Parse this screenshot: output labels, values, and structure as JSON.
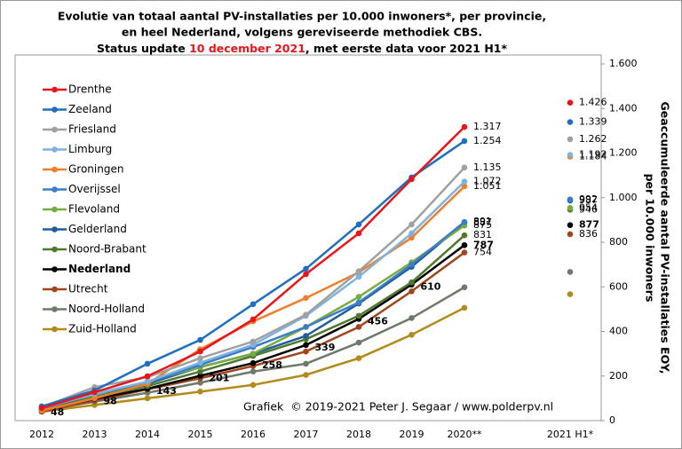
{
  "chart_data": {
    "type": "line",
    "title": [
      "Evolutie van totaal aantal PV-installaties  per 10.000 inwoners*, per provincie,",
      "en heel Nederland, volgens gereviseerde methodiek CBS."
    ],
    "status": {
      "prefix": "Status update ",
      "date": "10 december 2021",
      "suffix": ", met eerste data voor 2021 H1*"
    },
    "credit": "Grafiek  © 2019-2021 Peter J. Segaar / www.polderpv.nl",
    "y_label": [
      "Geaccumuleerde aantal PV-installaties EOY,",
      "per 10.000 inwoners"
    ],
    "categories": [
      "2012",
      "2013",
      "2014",
      "2015",
      "2016",
      "2017",
      "2018",
      "2019",
      "2020**",
      null,
      "2021 H1*"
    ],
    "ylim": [
      0,
      1600
    ],
    "yticks": [
      0,
      200,
      400,
      600,
      800,
      {
        "value": 1000,
        "label": "1.000"
      },
      {
        "value": 1200,
        "label": "1.200"
      },
      {
        "value": 1400,
        "label": "1.400"
      },
      {
        "value": 1600,
        "label": "1.600"
      }
    ],
    "legend": "upper left",
    "series": [
      {
        "name": "Drenthe",
        "color": "#e8161b",
        "values": [
          56,
          127,
          199,
          310,
          454,
          657,
          840,
          1083,
          1317,
          null,
          1426
        ],
        "value_labels": [
          null,
          null,
          null,
          null,
          null,
          null,
          null,
          null,
          "1.317",
          null,
          "1.426"
        ]
      },
      {
        "name": "Zeeland",
        "color": "#1f6fc1",
        "values": [
          64,
          135,
          255,
          362,
          522,
          681,
          880,
          1091,
          1254,
          null,
          1339
        ],
        "value_labels": [
          null,
          null,
          null,
          null,
          null,
          null,
          null,
          null,
          "1.254",
          null,
          "1.339"
        ]
      },
      {
        "name": "Friesland",
        "color": "#a0a0a0",
        "values": [
          60,
          150,
          195,
          280,
          355,
          475,
          670,
          880,
          1135,
          null,
          1262
        ],
        "value_labels": [
          null,
          null,
          null,
          null,
          null,
          null,
          null,
          null,
          "1.135",
          null,
          "1.262"
        ]
      },
      {
        "name": "Limburg",
        "color": "#7cb3e0",
        "values": [
          55,
          120,
          175,
          260,
          340,
          470,
          645,
          840,
          1072,
          null,
          1192
        ],
        "value_labels": [
          null,
          null,
          null,
          null,
          null,
          null,
          null,
          null,
          "1.072",
          null,
          "1.192"
        ]
      },
      {
        "name": "Groningen",
        "color": "#ef7f2c",
        "values": [
          45,
          100,
          165,
          320,
          445,
          550,
          665,
          820,
          1051,
          null,
          1184
        ],
        "value_labels": [
          null,
          null,
          null,
          null,
          null,
          null,
          null,
          null,
          "1.051",
          null,
          "1.184"
        ]
      },
      {
        "name": "Overijssel",
        "color": "#3b7dc8",
        "values": [
          55,
          120,
          170,
          250,
          330,
          420,
          530,
          700,
          891,
          null,
          992
        ],
        "value_labels": [
          null,
          null,
          null,
          null,
          null,
          null,
          null,
          null,
          "891",
          null,
          "992"
        ]
      },
      {
        "name": "Flevoland",
        "color": "#77ac41",
        "values": [
          60,
          115,
          175,
          240,
          300,
          420,
          555,
          710,
          875,
          null,
          954
        ],
        "value_labels": [
          null,
          null,
          null,
          null,
          null,
          null,
          null,
          null,
          "875",
          null,
          "954"
        ]
      },
      {
        "name": "Gelderland",
        "color": "#1e5c9c",
        "values": [
          55,
          115,
          165,
          240,
          300,
          380,
          525,
          690,
          887,
          null,
          987
        ],
        "value_labels": [
          null,
          null,
          null,
          null,
          null,
          null,
          null,
          null,
          "887",
          null,
          "987"
        ]
      },
      {
        "name": "Noord-Brabant",
        "color": "#4e7a2c",
        "values": [
          50,
          105,
          155,
          220,
          290,
          365,
          470,
          620,
          831,
          null,
          946
        ],
        "value_labels": [
          null,
          null,
          null,
          null,
          null,
          null,
          null,
          null,
          "831",
          null,
          "946"
        ]
      },
      {
        "name": "Nederland",
        "color": "#000000",
        "values": [
          48,
          98,
          143,
          201,
          258,
          339,
          456,
          610,
          787,
          null,
          877
        ]
      },
      {
        "name": "Utrecht",
        "color": "#a0451c",
        "values": [
          40,
          90,
          140,
          190,
          245,
          310,
          420,
          580,
          754,
          null,
          836
        ],
        "value_labels": [
          null,
          null,
          null,
          null,
          null,
          null,
          null,
          null,
          "754",
          null,
          "836"
        ]
      },
      {
        "name": "Noord-Holland",
        "color": "#6d7a6a",
        "values": [
          45,
          85,
          125,
          170,
          220,
          255,
          350,
          460,
          598,
          null,
          667
        ]
      },
      {
        "name": "Zuid-Holland",
        "color": "#b28a1a",
        "values": [
          40,
          70,
          100,
          130,
          160,
          205,
          280,
          385,
          506,
          null,
          567
        ]
      }
    ],
    "bold_series": "Nederland"
  }
}
